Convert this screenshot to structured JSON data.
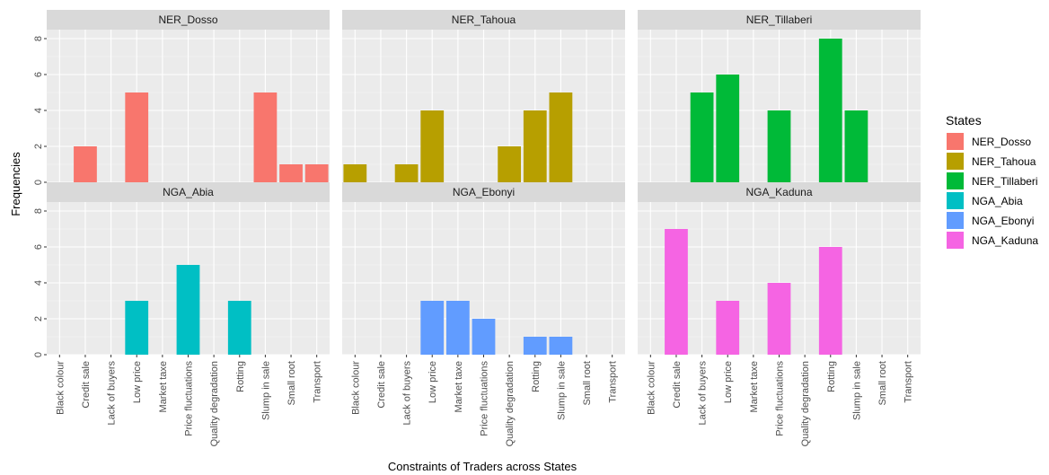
{
  "chart_data": {
    "type": "bar",
    "xlabel": "Constraints of Traders across States",
    "ylabel": "Frequencies",
    "ylim": [
      0,
      8.5
    ],
    "yticks": [
      0,
      2,
      4,
      6,
      8
    ],
    "grid": true,
    "legend_title": "States",
    "legend_position": "right",
    "categories": [
      "Black colour",
      "Credit sale",
      "Lack of buyers",
      "Low price",
      "Market taxe",
      "Price fluctuations",
      "Quality degradation",
      "Rotting",
      "Slump in sale",
      "Small root",
      "Transport"
    ],
    "panels": [
      {
        "name": "NER_Dosso",
        "color": "#F8766D",
        "values": [
          0,
          2,
          0,
          5,
          0,
          0,
          0,
          0,
          5,
          1,
          1
        ]
      },
      {
        "name": "NER_Tahoua",
        "color": "#B79F00",
        "values": [
          1,
          0,
          1,
          4,
          0,
          0,
          2,
          4,
          5,
          0,
          0
        ]
      },
      {
        "name": "NER_Tillaberi",
        "color": "#00BA38",
        "values": [
          0,
          0,
          5,
          6,
          0,
          4,
          0,
          8,
          4,
          0,
          0
        ]
      },
      {
        "name": "NGA_Abia",
        "color": "#00BFC4",
        "values": [
          0,
          0,
          0,
          3,
          0,
          5,
          0,
          3,
          0,
          0,
          0
        ]
      },
      {
        "name": "NGA_Ebonyi",
        "color": "#619CFF",
        "values": [
          0,
          0,
          0,
          3,
          3,
          2,
          0,
          1,
          1,
          0,
          0
        ]
      },
      {
        "name": "NGA_Kaduna",
        "color": "#F564E3",
        "values": [
          0,
          7,
          0,
          3,
          0,
          4,
          0,
          6,
          0,
          0,
          0
        ]
      }
    ]
  }
}
